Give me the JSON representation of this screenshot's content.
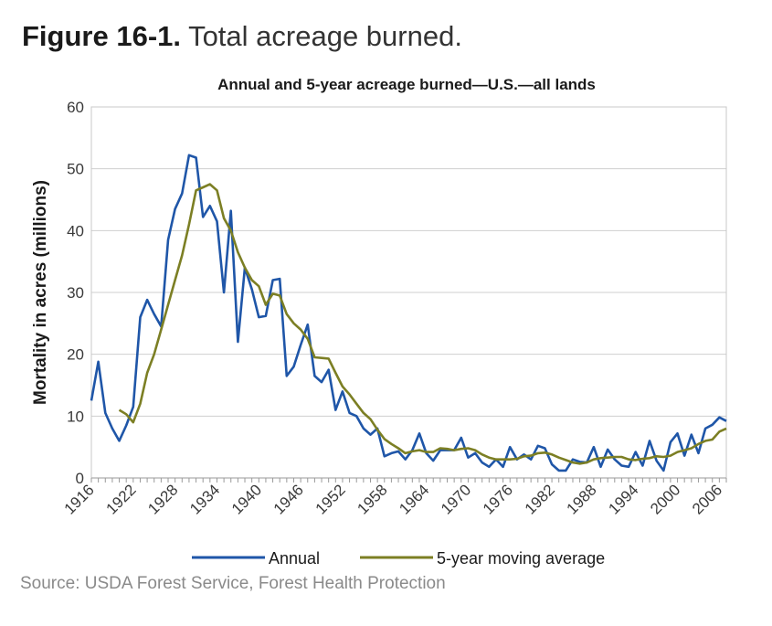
{
  "figure": {
    "number": "Figure 16-1.",
    "description": "Total acreage burned.",
    "source": "Source: USDA Forest Service, Forest Health Protection"
  },
  "chart_data": {
    "type": "line",
    "title": "Annual and 5-year acreage burned—U.S.—all lands",
    "xlabel": "",
    "ylabel": "Mortality in acres (millions)",
    "xlim": [
      1916,
      2007
    ],
    "ylim": [
      0,
      60
    ],
    "yticks": [
      0,
      10,
      20,
      30,
      40,
      50,
      60
    ],
    "xtick_labels": [
      "1916",
      "1922",
      "1928",
      "1934",
      "1940",
      "1946",
      "1952",
      "1958",
      "1964",
      "1970",
      "1976",
      "1982",
      "1988",
      "1994",
      "2000",
      "2006"
    ],
    "grid": true,
    "legend_position": "bottom",
    "series": [
      {
        "name": "Annual",
        "color": "#1f56a8",
        "x": [
          1916,
          1917,
          1918,
          1919,
          1920,
          1921,
          1922,
          1923,
          1924,
          1925,
          1926,
          1927,
          1928,
          1929,
          1930,
          1931,
          1932,
          1933,
          1934,
          1935,
          1936,
          1937,
          1938,
          1939,
          1940,
          1941,
          1942,
          1943,
          1944,
          1945,
          1946,
          1947,
          1948,
          1949,
          1950,
          1951,
          1952,
          1953,
          1954,
          1955,
          1956,
          1957,
          1958,
          1959,
          1960,
          1961,
          1962,
          1963,
          1964,
          1965,
          1966,
          1967,
          1968,
          1969,
          1970,
          1971,
          1972,
          1973,
          1974,
          1975,
          1976,
          1977,
          1978,
          1979,
          1980,
          1981,
          1982,
          1983,
          1984,
          1985,
          1986,
          1987,
          1988,
          1989,
          1990,
          1991,
          1992,
          1993,
          1994,
          1995,
          1996,
          1997,
          1998,
          1999,
          2000,
          2001,
          2002,
          2003,
          2004,
          2005,
          2006,
          2007
        ],
        "values": [
          12.5,
          18.8,
          10.5,
          8.0,
          6.0,
          8.5,
          11.5,
          26.0,
          28.8,
          26.5,
          24.5,
          38.5,
          43.5,
          46.0,
          52.2,
          51.8,
          42.2,
          44.0,
          41.5,
          30.0,
          43.2,
          22.0,
          34.0,
          30.5,
          26.0,
          26.2,
          32.0,
          32.2,
          16.5,
          18.0,
          21.5,
          24.8,
          16.5,
          15.5,
          17.5,
          11.0,
          14.0,
          10.5,
          10.0,
          8.0,
          7.0,
          8.0,
          3.5,
          4.0,
          4.3,
          3.0,
          4.5,
          7.2,
          4.0,
          2.8,
          4.5,
          4.5,
          4.5,
          6.5,
          3.3,
          4.0,
          2.5,
          1.8,
          3.0,
          1.8,
          5.0,
          3.0,
          3.8,
          3.0,
          5.2,
          4.8,
          2.2,
          1.2,
          1.2,
          3.0,
          2.6,
          2.5,
          5.0,
          1.8,
          4.6,
          3.0,
          2.0,
          1.8,
          4.2,
          2.0,
          6.0,
          2.8,
          1.2,
          5.8,
          7.2,
          3.6,
          7.0,
          4.0,
          8.0,
          8.6,
          9.8,
          9.2
        ]
      },
      {
        "name": "5-year moving average",
        "color": "#7c7f24",
        "x": [
          1920,
          1921,
          1922,
          1923,
          1924,
          1925,
          1926,
          1927,
          1928,
          1929,
          1930,
          1931,
          1932,
          1933,
          1934,
          1935,
          1936,
          1937,
          1938,
          1939,
          1940,
          1941,
          1942,
          1943,
          1944,
          1945,
          1946,
          1947,
          1948,
          1949,
          1950,
          1951,
          1952,
          1953,
          1954,
          1955,
          1956,
          1957,
          1958,
          1959,
          1960,
          1961,
          1962,
          1963,
          1964,
          1965,
          1966,
          1967,
          1968,
          1969,
          1970,
          1971,
          1972,
          1973,
          1974,
          1975,
          1976,
          1977,
          1978,
          1979,
          1980,
          1981,
          1982,
          1983,
          1984,
          1985,
          1986,
          1987,
          1988,
          1989,
          1990,
          1991,
          1992,
          1993,
          1994,
          1995,
          1996,
          1997,
          1998,
          1999,
          2000,
          2001,
          2002,
          2003,
          2004,
          2005,
          2006,
          2007
        ],
        "values": [
          11.0,
          10.3,
          9.0,
          12.0,
          17.0,
          20.0,
          24.0,
          28.0,
          32.0,
          36.0,
          41.0,
          46.5,
          47.0,
          47.5,
          46.5,
          42.0,
          40.0,
          36.5,
          34.0,
          32.0,
          31.0,
          28.0,
          29.8,
          29.5,
          26.5,
          25.0,
          24.0,
          22.5,
          19.5,
          19.4,
          19.3,
          17.0,
          14.8,
          13.5,
          12.0,
          10.5,
          9.5,
          7.8,
          6.3,
          5.5,
          4.8,
          4.0,
          4.3,
          4.5,
          4.2,
          4.2,
          4.8,
          4.7,
          4.5,
          4.7,
          4.8,
          4.5,
          3.8,
          3.3,
          3.0,
          3.0,
          3.0,
          3.1,
          3.5,
          3.6,
          4.0,
          4.1,
          3.8,
          3.3,
          2.9,
          2.5,
          2.3,
          2.5,
          3.0,
          3.2,
          3.3,
          3.4,
          3.4,
          3.0,
          2.9,
          3.1,
          3.2,
          3.5,
          3.4,
          3.6,
          4.2,
          4.5,
          4.8,
          5.5,
          6.0,
          6.2,
          7.5,
          8.0
        ]
      }
    ]
  }
}
